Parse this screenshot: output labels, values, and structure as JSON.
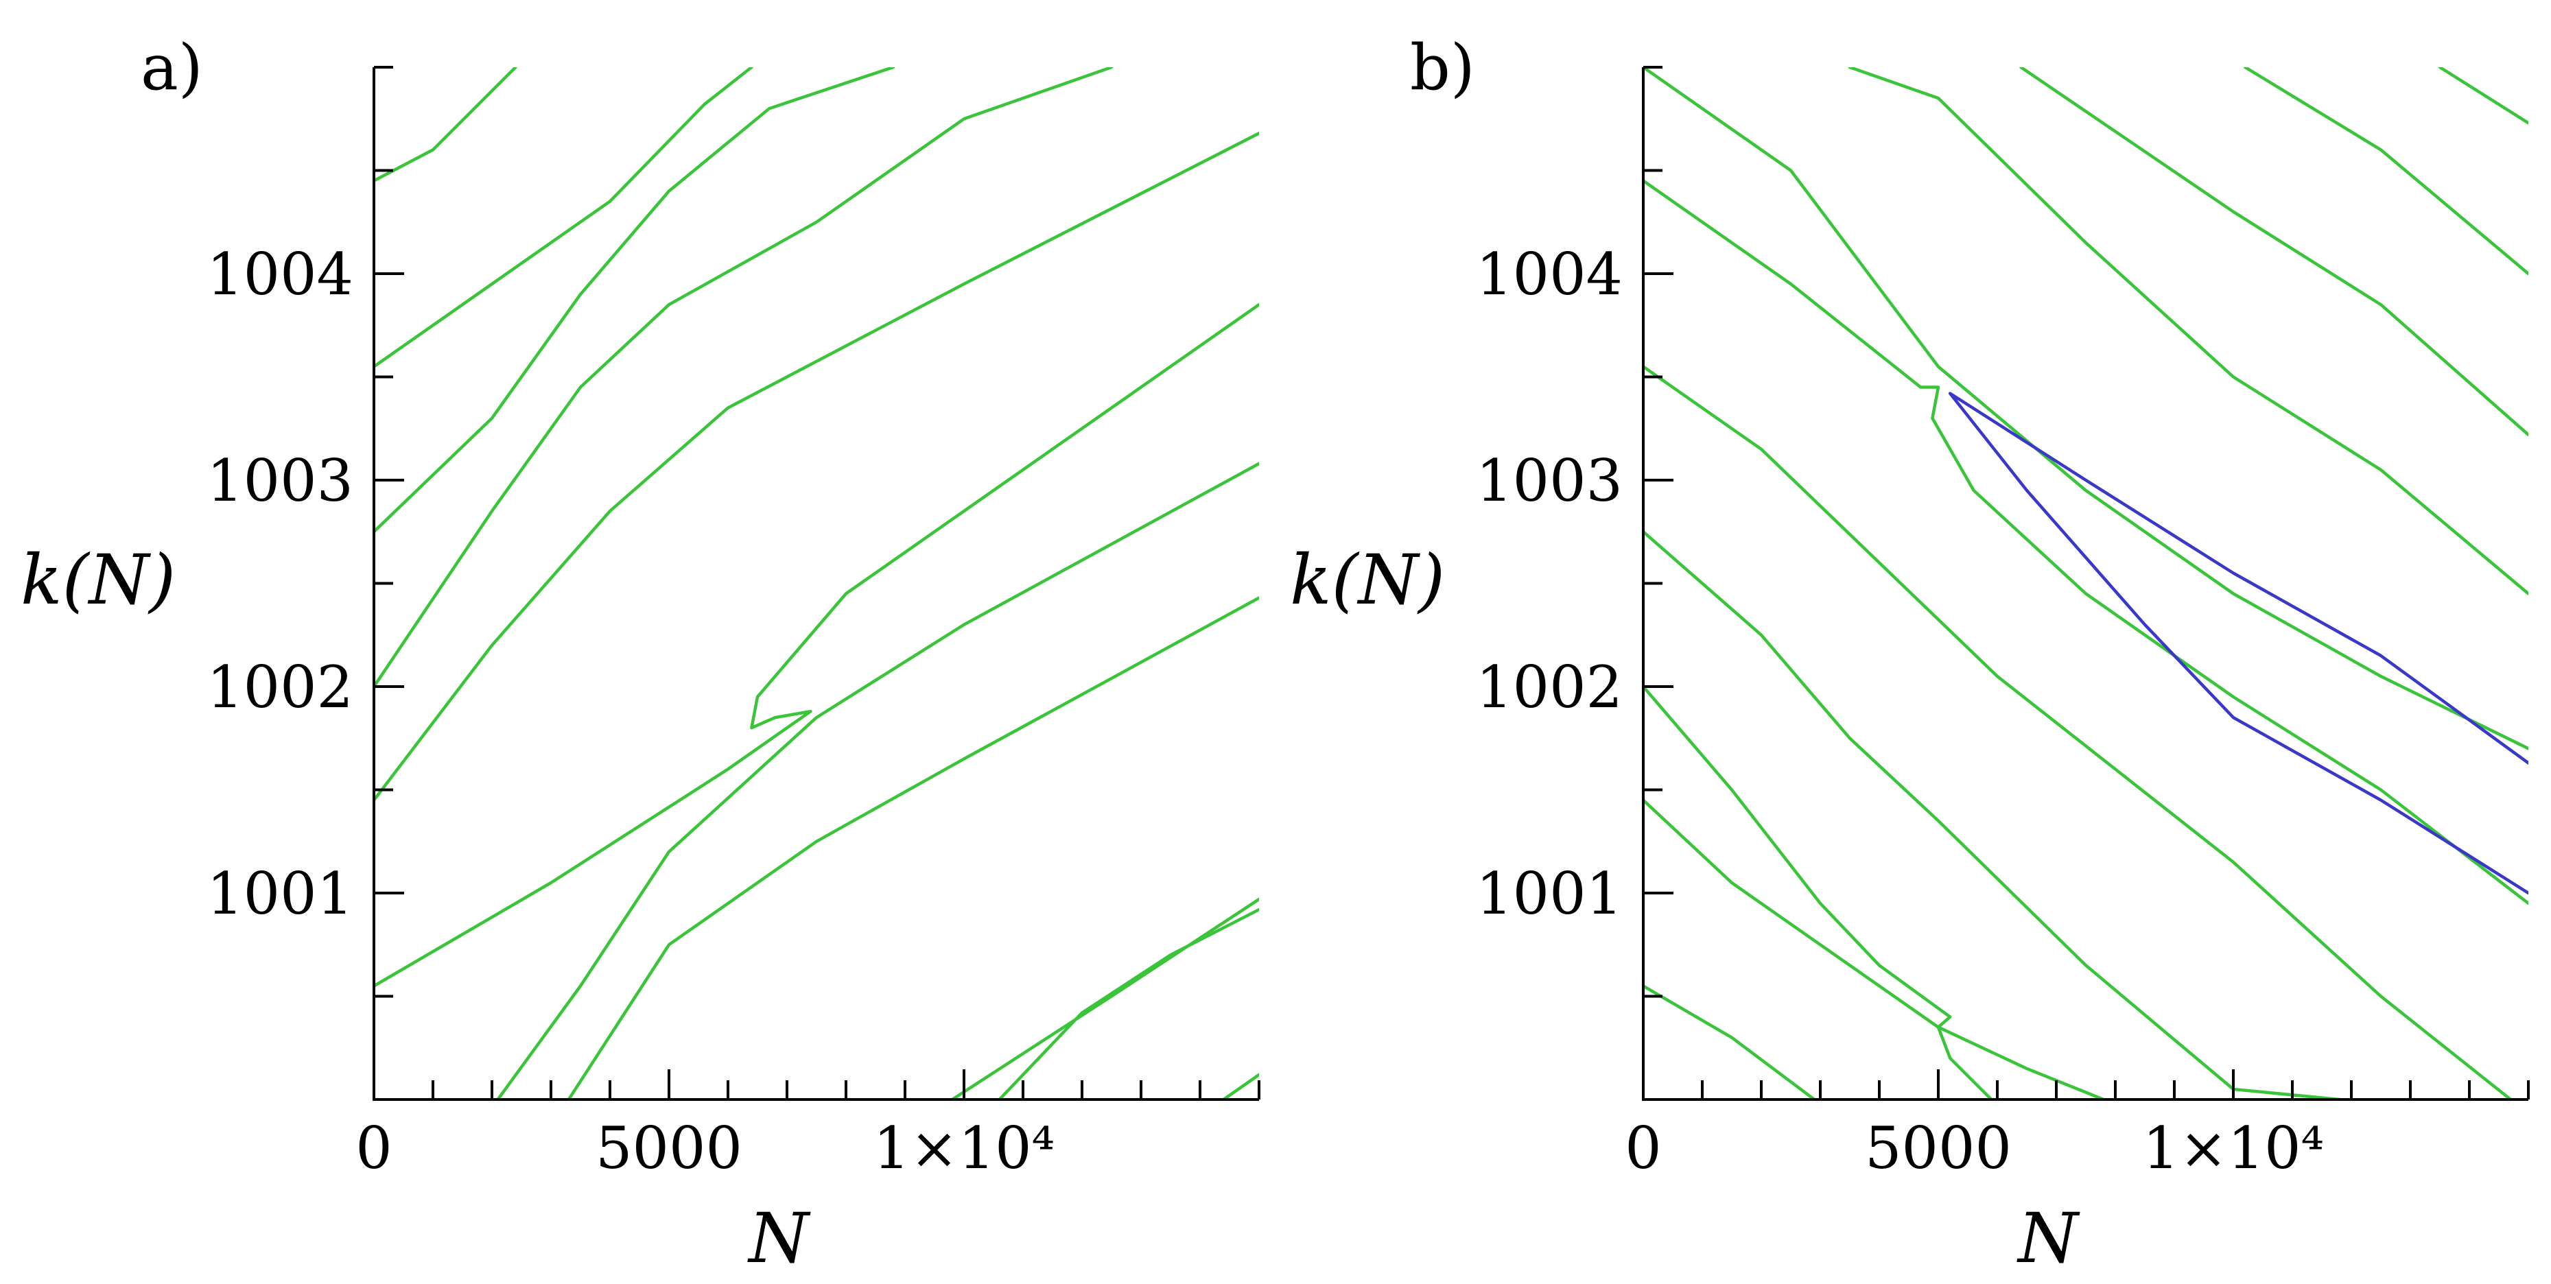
{
  "colors": {
    "green": "#3ac43a",
    "blue": "#3a38c8",
    "axis": "#000000"
  },
  "chart_data": [
    {
      "type": "line",
      "panel_label": "a)",
      "xlabel": "N",
      "ylabel": "k(N)",
      "xlim": [
        0,
        15000
      ],
      "ylim": [
        1000.0,
        1005.0
      ],
      "xticks": [
        {
          "value": 0,
          "label": "0"
        },
        {
          "value": 5000,
          "label": "5000"
        },
        {
          "value": 10000,
          "label": "1×10⁴"
        }
      ],
      "yticks": [
        {
          "value": 1001,
          "label": "1001"
        },
        {
          "value": 1002,
          "label": "1002"
        },
        {
          "value": 1003,
          "label": "1003"
        },
        {
          "value": 1004,
          "label": "1004"
        }
      ],
      "series": [
        {
          "color": "green",
          "points": [
            [
              0,
              1004.45
            ],
            [
              1000,
              1004.6
            ],
            [
              2400,
              1005.0
            ]
          ]
        },
        {
          "color": "green",
          "points": [
            [
              0,
              1003.55
            ],
            [
              2000,
              1003.95
            ],
            [
              4000,
              1004.35
            ],
            [
              5600,
              1004.82
            ],
            [
              6400,
              1005.0
            ]
          ]
        },
        {
          "color": "green",
          "points": [
            [
              0,
              1002.75
            ],
            [
              2000,
              1003.3
            ],
            [
              3500,
              1003.9
            ],
            [
              5000,
              1004.4
            ],
            [
              6700,
              1004.8
            ],
            [
              8800,
              1005.0
            ]
          ]
        },
        {
          "color": "green",
          "points": [
            [
              0,
              1002.0
            ],
            [
              2000,
              1002.85
            ],
            [
              3500,
              1003.45
            ],
            [
              5000,
              1003.85
            ],
            [
              7500,
              1004.25
            ],
            [
              10000,
              1004.75
            ],
            [
              12500,
              1005.0
            ]
          ]
        },
        {
          "color": "green",
          "points": [
            [
              0,
              1001.45
            ],
            [
              2000,
              1002.2
            ],
            [
              4000,
              1002.85
            ],
            [
              6000,
              1003.35
            ],
            [
              10000,
              1003.95
            ],
            [
              15000,
              1004.68
            ]
          ]
        },
        {
          "color": "green",
          "points": [
            [
              0,
              1000.55
            ],
            [
              3000,
              1001.05
            ],
            [
              6000,
              1001.6
            ],
            [
              7400,
              1001.88
            ],
            [
              6800,
              1001.85
            ],
            [
              6400,
              1001.8
            ],
            [
              6500,
              1001.95
            ],
            [
              8000,
              1002.45
            ],
            [
              10000,
              1002.85
            ],
            [
              12500,
              1003.35
            ],
            [
              15000,
              1003.85
            ]
          ]
        },
        {
          "color": "green",
          "points": [
            [
              2100,
              1000.0
            ],
            [
              3500,
              1000.55
            ],
            [
              5000,
              1001.2
            ],
            [
              7500,
              1001.85
            ],
            [
              10000,
              1002.3
            ],
            [
              15000,
              1003.08
            ]
          ]
        },
        {
          "color": "green",
          "points": [
            [
              3300,
              1000.0
            ],
            [
              5000,
              1000.75
            ],
            [
              7500,
              1001.25
            ],
            [
              10000,
              1001.65
            ],
            [
              15000,
              1002.43
            ]
          ]
        },
        {
          "color": "green",
          "points": [
            [
              9800,
              1000.0
            ],
            [
              12500,
              1000.5
            ],
            [
              15000,
              1000.97
            ]
          ]
        },
        {
          "color": "green",
          "points": [
            [
              10600,
              1000.0
            ],
            [
              12000,
              1000.42
            ],
            [
              13500,
              1000.7
            ],
            [
              15000,
              1000.92
            ]
          ]
        },
        {
          "color": "green",
          "points": [
            [
              14400,
              1000.0
            ],
            [
              15000,
              1000.12
            ]
          ]
        }
      ]
    },
    {
      "type": "line",
      "panel_label": "b)",
      "xlabel": "N",
      "ylabel": "k(N)",
      "xlim": [
        0,
        15000
      ],
      "ylim": [
        1000.0,
        1005.0
      ],
      "xticks": [
        {
          "value": 0,
          "label": "0"
        },
        {
          "value": 5000,
          "label": "5000"
        },
        {
          "value": 10000,
          "label": "1×10⁴"
        }
      ],
      "yticks": [
        {
          "value": 1001,
          "label": "1001"
        },
        {
          "value": 1002,
          "label": "1002"
        },
        {
          "value": 1003,
          "label": "1003"
        },
        {
          "value": 1004,
          "label": "1004"
        }
      ],
      "series": [
        {
          "color": "green",
          "points": [
            [
              13500,
              1005.0
            ],
            [
              15000,
              1004.73
            ]
          ]
        },
        {
          "color": "green",
          "points": [
            [
              10200,
              1005.0
            ],
            [
              12500,
              1004.6
            ],
            [
              15000,
              1004.0
            ]
          ]
        },
        {
          "color": "green",
          "points": [
            [
              6400,
              1005.0
            ],
            [
              10000,
              1004.3
            ],
            [
              12500,
              1003.85
            ],
            [
              15000,
              1003.22
            ]
          ]
        },
        {
          "color": "green",
          "points": [
            [
              3500,
              1005.0
            ],
            [
              5000,
              1004.85
            ],
            [
              7500,
              1004.15
            ],
            [
              10000,
              1003.5
            ],
            [
              12500,
              1003.05
            ],
            [
              15000,
              1002.45
            ]
          ]
        },
        {
          "color": "green",
          "points": [
            [
              0,
              1005.0
            ],
            [
              2500,
              1004.5
            ],
            [
              5000,
              1003.55
            ],
            [
              7500,
              1002.95
            ],
            [
              10000,
              1002.45
            ],
            [
              12500,
              1002.05
            ],
            [
              15000,
              1001.7
            ]
          ]
        },
        {
          "color": "green",
          "points": [
            [
              0,
              1004.45
            ],
            [
              2500,
              1003.95
            ],
            [
              4700,
              1003.45
            ],
            [
              5000,
              1003.45
            ],
            [
              4900,
              1003.3
            ],
            [
              5600,
              1002.95
            ],
            [
              7500,
              1002.45
            ],
            [
              10000,
              1001.95
            ],
            [
              12500,
              1001.5
            ],
            [
              15000,
              1000.95
            ]
          ]
        },
        {
          "color": "green",
          "points": [
            [
              0,
              1003.55
            ],
            [
              2000,
              1003.15
            ],
            [
              4000,
              1002.6
            ],
            [
              6000,
              1002.05
            ],
            [
              8000,
              1001.6
            ],
            [
              10000,
              1001.15
            ],
            [
              12500,
              1000.5
            ],
            [
              14700,
              1000.0
            ]
          ]
        },
        {
          "color": "green",
          "points": [
            [
              0,
              1002.75
            ],
            [
              2000,
              1002.25
            ],
            [
              3500,
              1001.75
            ],
            [
              5000,
              1001.35
            ],
            [
              7500,
              1000.65
            ],
            [
              10000,
              1000.05
            ],
            [
              11800,
              1000.0
            ]
          ]
        },
        {
          "color": "green",
          "points": [
            [
              0,
              1002.0
            ],
            [
              1500,
              1001.5
            ],
            [
              3000,
              1000.95
            ],
            [
              4000,
              1000.65
            ],
            [
              5200,
              1000.4
            ],
            [
              5000,
              1000.35
            ],
            [
              5200,
              1000.2
            ],
            [
              5900,
              1000.0
            ]
          ]
        },
        {
          "color": "green",
          "points": [
            [
              0,
              1001.45
            ],
            [
              1500,
              1001.05
            ],
            [
              3000,
              1000.75
            ],
            [
              5000,
              1000.35
            ],
            [
              6500,
              1000.15
            ],
            [
              7800,
              1000.0
            ]
          ]
        },
        {
          "color": "green",
          "points": [
            [
              0,
              1000.55
            ],
            [
              1500,
              1000.3
            ],
            [
              2900,
              1000.0
            ]
          ]
        },
        {
          "color": "blue",
          "points": [
            [
              15000,
              1001.63
            ],
            [
              12500,
              1002.15
            ],
            [
              10000,
              1002.55
            ],
            [
              7500,
              1003.0
            ],
            [
              5200,
              1003.42
            ],
            [
              6500,
              1002.95
            ],
            [
              8500,
              1002.3
            ],
            [
              10000,
              1001.85
            ],
            [
              12500,
              1001.45
            ],
            [
              15000,
              1001.0
            ]
          ]
        }
      ]
    }
  ]
}
